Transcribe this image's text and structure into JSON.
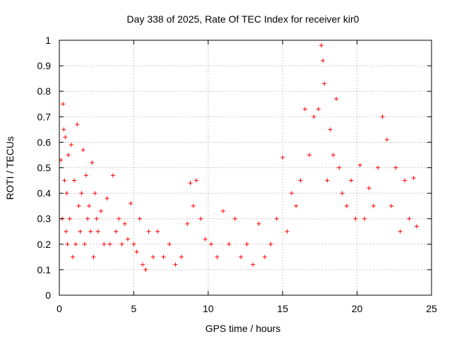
{
  "chart_data": {
    "type": "scatter",
    "title": "Day 338 of 2025, Rate Of TEC Index for receiver kir0",
    "xlabel": "GPS time / hours",
    "ylabel": "ROTI / TECUs",
    "xlim": [
      0,
      25
    ],
    "ylim": [
      0,
      1
    ],
    "xticks": [
      0,
      5,
      10,
      15,
      20,
      25
    ],
    "yticks": [
      0,
      0.1,
      0.2,
      0.3,
      0.4,
      0.5,
      0.6,
      0.7,
      0.8,
      0.9,
      1
    ],
    "xtick_labels": [
      "0",
      "5",
      "10",
      "15",
      "20",
      "25"
    ],
    "ytick_labels": [
      "0",
      "0.1",
      "0.2",
      "0.3",
      "0.4",
      "0.5",
      "0.6",
      "0.7",
      "0.8",
      "0.9",
      "1"
    ],
    "grid": true,
    "marker": "+",
    "marker_color": "#ff0000",
    "series": [
      {
        "x": [
          0.1,
          0.2,
          0.25,
          0.3,
          0.35,
          0.4,
          0.45,
          0.5,
          0.55,
          0.6,
          0.7,
          0.8,
          0.9,
          1.0,
          1.1,
          1.2,
          1.3,
          1.4,
          1.5,
          1.6,
          1.7,
          1.8,
          1.9,
          2.0,
          2.1,
          2.2,
          2.3,
          2.4,
          2.5,
          2.6,
          2.8,
          3.0,
          3.2,
          3.4,
          3.6,
          3.8,
          4.0,
          4.2,
          4.4,
          4.6,
          4.8,
          5.0,
          5.2,
          5.4,
          5.6,
          5.8,
          6.0,
          6.3,
          6.6,
          7.0,
          7.4,
          7.8,
          8.2,
          8.6,
          8.8,
          9.0,
          9.2,
          9.5,
          9.8,
          10.2,
          10.6,
          11.0,
          11.4,
          11.8,
          12.2,
          12.6,
          13.0,
          13.4,
          13.8,
          14.2,
          14.6,
          15.0,
          15.3,
          15.6,
          15.9,
          16.2,
          16.5,
          16.8,
          17.1,
          17.4,
          17.6,
          17.7,
          17.8,
          18.0,
          18.2,
          18.4,
          18.6,
          18.8,
          19.0,
          19.3,
          19.6,
          19.9,
          20.2,
          20.5,
          20.8,
          21.1,
          21.4,
          21.7,
          22.0,
          22.3,
          22.6,
          22.9,
          23.2,
          23.5,
          23.8,
          24.0
        ],
        "y": [
          0.53,
          0.3,
          0.75,
          0.65,
          0.45,
          0.62,
          0.25,
          0.4,
          0.2,
          0.55,
          0.3,
          0.59,
          0.15,
          0.45,
          0.2,
          0.67,
          0.35,
          0.25,
          0.4,
          0.57,
          0.2,
          0.47,
          0.3,
          0.35,
          0.25,
          0.52,
          0.15,
          0.4,
          0.3,
          0.25,
          0.33,
          0.2,
          0.38,
          0.2,
          0.47,
          0.25,
          0.3,
          0.2,
          0.28,
          0.22,
          0.36,
          0.2,
          0.17,
          0.3,
          0.12,
          0.1,
          0.25,
          0.15,
          0.25,
          0.15,
          0.2,
          0.12,
          0.15,
          0.28,
          0.44,
          0.35,
          0.45,
          0.3,
          0.22,
          0.2,
          0.15,
          0.33,
          0.2,
          0.3,
          0.15,
          0.2,
          0.12,
          0.28,
          0.15,
          0.2,
          0.3,
          0.54,
          0.25,
          0.4,
          0.35,
          0.45,
          0.73,
          0.55,
          0.7,
          0.73,
          0.98,
          0.92,
          0.83,
          0.45,
          0.65,
          0.55,
          0.77,
          0.5,
          0.4,
          0.35,
          0.45,
          0.3,
          0.51,
          0.3,
          0.42,
          0.35,
          0.5,
          0.7,
          0.61,
          0.35,
          0.5,
          0.25,
          0.45,
          0.3,
          0.46,
          0.27
        ]
      }
    ]
  }
}
